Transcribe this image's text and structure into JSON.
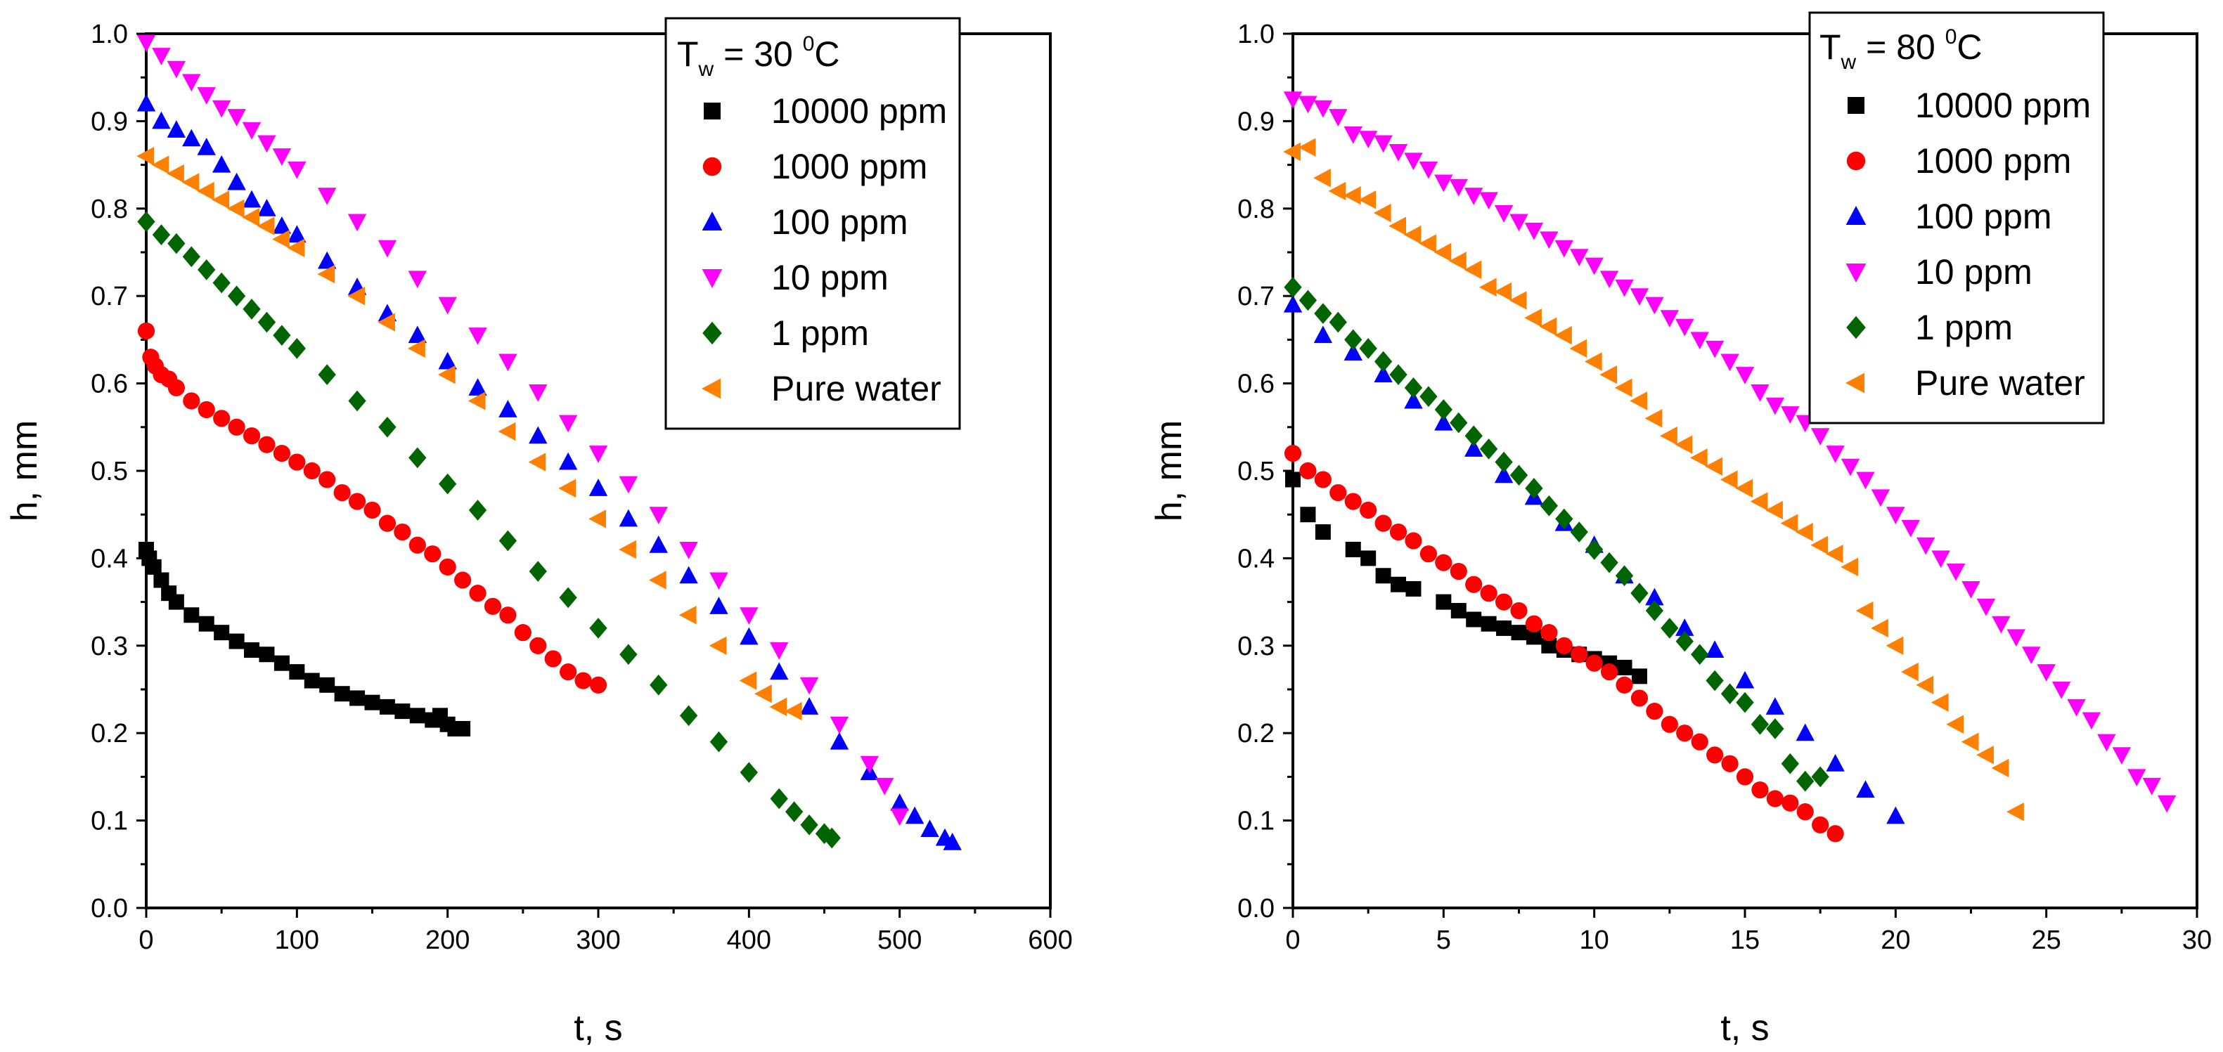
{
  "chart_data": [
    {
      "type": "scatter",
      "id": "left",
      "legend_title": {
        "main": "T",
        "sub": "w",
        "rest": " = 30 ",
        "sup": "0",
        "unit": "C"
      },
      "xlabel": "t, s",
      "ylabel": "h, mm",
      "xlim": [
        0,
        600
      ],
      "ylim": [
        0,
        1.0
      ],
      "xticks": [
        0,
        100,
        200,
        300,
        400,
        500,
        600
      ],
      "yticks": [
        0.0,
        0.1,
        0.2,
        0.3,
        0.4,
        0.5,
        0.6,
        0.7,
        0.8,
        0.9,
        1.0
      ],
      "ytick_labels": [
        "0.0",
        "0.1",
        "0.2",
        "0.3",
        "0.4",
        "0.5",
        "0.6",
        "0.7",
        "0.8",
        "0.9",
        "1.0"
      ],
      "legend_position": "top-right",
      "series": [
        {
          "name": "10000 ppm",
          "color": "#000000",
          "marker": "square",
          "x": [
            0,
            2,
            5,
            10,
            15,
            20,
            30,
            40,
            50,
            60,
            70,
            80,
            90,
            100,
            110,
            120,
            130,
            140,
            150,
            160,
            170,
            180,
            190,
            195,
            200,
            205,
            210
          ],
          "y": [
            0.41,
            0.4,
            0.39,
            0.375,
            0.36,
            0.35,
            0.335,
            0.325,
            0.315,
            0.305,
            0.295,
            0.29,
            0.28,
            0.27,
            0.26,
            0.255,
            0.245,
            0.24,
            0.235,
            0.23,
            0.225,
            0.22,
            0.215,
            0.22,
            0.21,
            0.205,
            0.205
          ]
        },
        {
          "name": "1000 ppm",
          "color": "#ff0000",
          "marker": "circle",
          "x": [
            0,
            3,
            6,
            10,
            15,
            20,
            30,
            40,
            50,
            60,
            70,
            80,
            90,
            100,
            110,
            120,
            130,
            140,
            150,
            160,
            170,
            180,
            190,
            200,
            210,
            220,
            230,
            240,
            250,
            260,
            270,
            280,
            290,
            300
          ],
          "y": [
            0.66,
            0.63,
            0.62,
            0.61,
            0.605,
            0.595,
            0.58,
            0.57,
            0.56,
            0.55,
            0.54,
            0.53,
            0.52,
            0.51,
            0.5,
            0.49,
            0.475,
            0.465,
            0.455,
            0.44,
            0.43,
            0.415,
            0.405,
            0.39,
            0.375,
            0.36,
            0.345,
            0.335,
            0.315,
            0.3,
            0.285,
            0.27,
            0.26,
            0.255
          ]
        },
        {
          "name": "100 ppm",
          "color": "#0000ff",
          "marker": "triangle-up",
          "x": [
            0,
            10,
            20,
            30,
            40,
            50,
            60,
            70,
            80,
            90,
            100,
            120,
            140,
            160,
            180,
            200,
            220,
            240,
            260,
            280,
            300,
            320,
            340,
            360,
            380,
            400,
            420,
            440,
            460,
            480,
            500,
            510,
            520,
            530,
            535
          ],
          "y": [
            0.92,
            0.9,
            0.89,
            0.88,
            0.87,
            0.85,
            0.83,
            0.81,
            0.8,
            0.78,
            0.77,
            0.74,
            0.71,
            0.68,
            0.655,
            0.625,
            0.595,
            0.57,
            0.54,
            0.51,
            0.48,
            0.445,
            0.415,
            0.38,
            0.345,
            0.31,
            0.27,
            0.23,
            0.19,
            0.155,
            0.12,
            0.105,
            0.09,
            0.08,
            0.075
          ]
        },
        {
          "name": "10 ppm",
          "color": "#ff00ff",
          "marker": "triangle-down",
          "x": [
            0,
            10,
            20,
            30,
            40,
            50,
            60,
            70,
            80,
            90,
            100,
            120,
            140,
            160,
            180,
            200,
            220,
            240,
            260,
            280,
            300,
            320,
            340,
            360,
            380,
            400,
            420,
            440,
            460,
            480,
            490,
            500
          ],
          "y": [
            0.99,
            0.975,
            0.96,
            0.945,
            0.93,
            0.915,
            0.905,
            0.89,
            0.875,
            0.86,
            0.845,
            0.815,
            0.785,
            0.755,
            0.72,
            0.69,
            0.655,
            0.625,
            0.59,
            0.555,
            0.52,
            0.485,
            0.45,
            0.41,
            0.375,
            0.335,
            0.295,
            0.255,
            0.21,
            0.165,
            0.14,
            0.105
          ]
        },
        {
          "name": "1 ppm",
          "color": "#006400",
          "marker": "diamond",
          "x": [
            0,
            10,
            20,
            30,
            40,
            50,
            60,
            70,
            80,
            90,
            100,
            120,
            140,
            160,
            180,
            200,
            220,
            240,
            260,
            280,
            300,
            320,
            340,
            360,
            380,
            400,
            420,
            430,
            440,
            450,
            455
          ],
          "y": [
            0.785,
            0.77,
            0.76,
            0.745,
            0.73,
            0.715,
            0.7,
            0.685,
            0.67,
            0.655,
            0.64,
            0.61,
            0.58,
            0.55,
            0.515,
            0.485,
            0.455,
            0.42,
            0.385,
            0.355,
            0.32,
            0.29,
            0.255,
            0.22,
            0.19,
            0.155,
            0.125,
            0.11,
            0.095,
            0.085,
            0.08
          ]
        },
        {
          "name": "Pure water",
          "color": "#ff7f00",
          "marker": "triangle-left",
          "x": [
            0,
            10,
            20,
            30,
            40,
            50,
            60,
            70,
            80,
            90,
            100,
            120,
            140,
            160,
            180,
            200,
            220,
            240,
            260,
            280,
            300,
            320,
            340,
            360,
            380,
            400,
            410,
            420,
            430
          ],
          "y": [
            0.86,
            0.85,
            0.84,
            0.83,
            0.82,
            0.81,
            0.8,
            0.79,
            0.78,
            0.765,
            0.755,
            0.725,
            0.7,
            0.67,
            0.64,
            0.61,
            0.58,
            0.545,
            0.51,
            0.48,
            0.445,
            0.41,
            0.375,
            0.335,
            0.3,
            0.26,
            0.245,
            0.23,
            0.225
          ]
        }
      ]
    },
    {
      "type": "scatter",
      "id": "right",
      "legend_title": {
        "main": "T",
        "sub": "w",
        "rest": " = 80 ",
        "sup": "0",
        "unit": "C"
      },
      "xlabel": "t, s",
      "ylabel": "h, mm",
      "xlim": [
        0,
        30
      ],
      "ylim": [
        0,
        1.0
      ],
      "xticks": [
        0,
        5,
        10,
        15,
        20,
        25,
        30
      ],
      "yticks": [
        0.0,
        0.1,
        0.2,
        0.3,
        0.4,
        0.5,
        0.6,
        0.7,
        0.8,
        0.9,
        1.0
      ],
      "ytick_labels": [
        "0.0",
        "0.1",
        "0.2",
        "0.3",
        "0.4",
        "0.5",
        "0.6",
        "0.7",
        "0.8",
        "0.9",
        "1.0"
      ],
      "legend_position": "top-right",
      "series": [
        {
          "name": "10000 ppm",
          "color": "#000000",
          "marker": "square",
          "x": [
            0,
            0.5,
            1,
            2,
            2.5,
            3,
            3.5,
            4,
            5,
            5.5,
            6,
            6.5,
            7,
            7.5,
            8,
            8.5,
            9,
            9.5,
            10,
            10.5,
            11,
            11.5
          ],
          "y": [
            0.49,
            0.45,
            0.43,
            0.41,
            0.4,
            0.38,
            0.37,
            0.365,
            0.35,
            0.34,
            0.33,
            0.325,
            0.32,
            0.315,
            0.31,
            0.3,
            0.295,
            0.29,
            0.285,
            0.28,
            0.275,
            0.265
          ]
        },
        {
          "name": "1000 ppm",
          "color": "#ff0000",
          "marker": "circle",
          "x": [
            0,
            0.5,
            1,
            1.5,
            2,
            2.5,
            3,
            3.5,
            4,
            4.5,
            5,
            5.5,
            6,
            6.5,
            7,
            7.5,
            8,
            8.5,
            9,
            9.5,
            10,
            10.5,
            11,
            11.5,
            12,
            12.5,
            13,
            13.5,
            14,
            14.5,
            15,
            15.5,
            16,
            16.5,
            17,
            17.5,
            18
          ],
          "y": [
            0.52,
            0.5,
            0.49,
            0.475,
            0.465,
            0.455,
            0.44,
            0.43,
            0.42,
            0.405,
            0.395,
            0.385,
            0.37,
            0.36,
            0.35,
            0.34,
            0.325,
            0.315,
            0.3,
            0.29,
            0.28,
            0.27,
            0.255,
            0.24,
            0.225,
            0.21,
            0.2,
            0.19,
            0.175,
            0.165,
            0.15,
            0.135,
            0.125,
            0.12,
            0.11,
            0.095,
            0.085
          ]
        },
        {
          "name": "100 ppm",
          "color": "#0000ff",
          "marker": "triangle-up",
          "x": [
            0,
            1,
            2,
            3,
            4,
            5,
            6,
            7,
            8,
            9,
            10,
            11,
            12,
            13,
            14,
            15,
            16,
            17,
            18,
            19,
            20
          ],
          "y": [
            0.69,
            0.655,
            0.635,
            0.61,
            0.58,
            0.555,
            0.525,
            0.495,
            0.47,
            0.44,
            0.415,
            0.38,
            0.355,
            0.32,
            0.295,
            0.26,
            0.23,
            0.2,
            0.165,
            0.135,
            0.105
          ]
        },
        {
          "name": "10 ppm",
          "color": "#ff00ff",
          "marker": "triangle-down",
          "x": [
            0,
            0.5,
            1,
            1.5,
            2,
            2.5,
            3,
            3.5,
            4,
            4.5,
            5,
            5.5,
            6,
            6.5,
            7,
            7.5,
            8,
            8.5,
            9,
            9.5,
            10,
            10.5,
            11,
            11.5,
            12,
            12.5,
            13,
            13.5,
            14,
            14.5,
            15,
            15.5,
            16,
            16.5,
            17,
            17.5,
            18,
            18.5,
            19,
            19.5,
            20,
            20.5,
            21,
            21.5,
            22,
            22.5,
            23,
            23.5,
            24,
            24.5,
            25,
            25.5,
            26,
            26.5,
            27,
            27.5,
            28,
            28.5,
            29
          ],
          "y": [
            0.925,
            0.92,
            0.915,
            0.905,
            0.885,
            0.88,
            0.875,
            0.865,
            0.855,
            0.845,
            0.83,
            0.825,
            0.815,
            0.81,
            0.795,
            0.785,
            0.775,
            0.765,
            0.755,
            0.745,
            0.735,
            0.72,
            0.71,
            0.7,
            0.69,
            0.675,
            0.665,
            0.65,
            0.64,
            0.625,
            0.61,
            0.59,
            0.575,
            0.565,
            0.555,
            0.54,
            0.52,
            0.505,
            0.49,
            0.47,
            0.45,
            0.435,
            0.415,
            0.4,
            0.385,
            0.365,
            0.345,
            0.325,
            0.31,
            0.29,
            0.27,
            0.25,
            0.23,
            0.215,
            0.19,
            0.175,
            0.15,
            0.14,
            0.12
          ]
        },
        {
          "name": "1 ppm",
          "color": "#006400",
          "marker": "diamond",
          "x": [
            0,
            0.5,
            1,
            1.5,
            2,
            2.5,
            3,
            3.5,
            4,
            4.5,
            5,
            5.5,
            6,
            6.5,
            7,
            7.5,
            8,
            8.5,
            9,
            9.5,
            10,
            10.5,
            11,
            11.5,
            12,
            12.5,
            13,
            13.5,
            14,
            14.5,
            15,
            15.5,
            16,
            16.5,
            17,
            17.5
          ],
          "y": [
            0.71,
            0.695,
            0.68,
            0.67,
            0.65,
            0.64,
            0.625,
            0.61,
            0.595,
            0.585,
            0.57,
            0.555,
            0.54,
            0.525,
            0.51,
            0.495,
            0.48,
            0.46,
            0.445,
            0.43,
            0.41,
            0.395,
            0.38,
            0.36,
            0.34,
            0.32,
            0.305,
            0.29,
            0.26,
            0.245,
            0.235,
            0.21,
            0.205,
            0.165,
            0.145,
            0.15
          ]
        },
        {
          "name": "Pure water",
          "color": "#ff7f00",
          "marker": "triangle-left",
          "x": [
            0,
            0.5,
            1,
            1.5,
            2,
            2.5,
            3,
            3.5,
            4,
            4.5,
            5,
            5.5,
            6,
            6.5,
            7,
            7.5,
            8,
            8.5,
            9,
            9.5,
            10,
            10.5,
            11,
            11.5,
            12,
            12.5,
            13,
            13.5,
            14,
            14.5,
            15,
            15.5,
            16,
            16.5,
            17,
            17.5,
            18,
            18.5,
            19,
            19.5,
            20,
            20.5,
            21,
            21.5,
            22,
            22.5,
            23,
            23.5,
            24
          ],
          "y": [
            0.865,
            0.87,
            0.835,
            0.82,
            0.815,
            0.81,
            0.795,
            0.78,
            0.77,
            0.76,
            0.75,
            0.74,
            0.73,
            0.71,
            0.705,
            0.695,
            0.675,
            0.665,
            0.655,
            0.64,
            0.625,
            0.61,
            0.595,
            0.58,
            0.56,
            0.54,
            0.53,
            0.515,
            0.505,
            0.49,
            0.48,
            0.465,
            0.455,
            0.44,
            0.43,
            0.415,
            0.405,
            0.39,
            0.34,
            0.32,
            0.3,
            0.27,
            0.255,
            0.235,
            0.21,
            0.19,
            0.175,
            0.16,
            0.11
          ]
        }
      ]
    }
  ]
}
